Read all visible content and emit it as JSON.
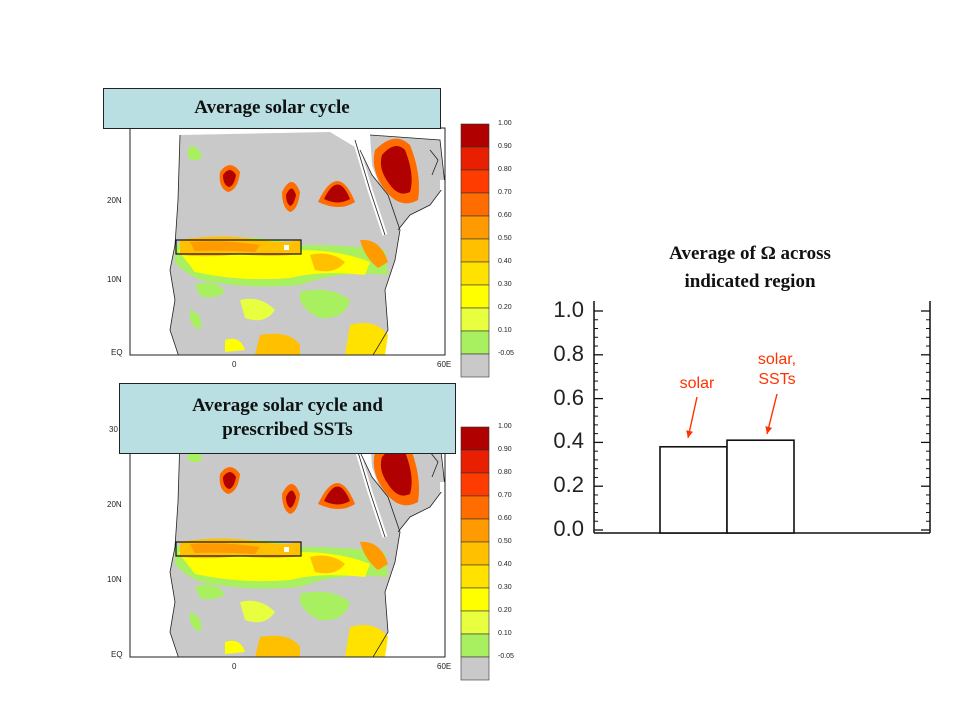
{
  "colors": {
    "scale": [
      "#c9c9c9",
      "#a8f060",
      "#e8ff40",
      "#ffff00",
      "#ffe200",
      "#ffc000",
      "#ff9a00",
      "#ff6c00",
      "#ff3c00",
      "#e81f00",
      "#b00000"
    ],
    "title_bg": "#b9dfe3",
    "annotation": "#ff3300"
  },
  "panels": [
    {
      "title": "Average solar cycle",
      "y_ticks": [
        "20N",
        "10N",
        "EQ"
      ],
      "x_ticks": [
        "0",
        "60E"
      ],
      "colorbar": [
        "1.00",
        "0.90",
        "0.80",
        "0.70",
        "0.60",
        "0.50",
        "0.40",
        "0.30",
        "0.20",
        "0.10",
        "-0.05"
      ]
    },
    {
      "title_lines": [
        "Average solar cycle and",
        "prescribed SSTs"
      ],
      "y_ticks": [
        "30",
        "20N",
        "10N",
        "EQ"
      ],
      "x_ticks": [
        "0",
        "60E"
      ],
      "colorbar": [
        "1.00",
        "0.90",
        "0.80",
        "0.70",
        "0.60",
        "0.50",
        "0.40",
        "0.30",
        "0.20",
        "0.10",
        "-0.05"
      ]
    }
  ],
  "chart_data": {
    "type": "bar",
    "title": "Average of Ω across indicated region",
    "title_lines": [
      "Average of Ω across",
      "indicated region"
    ],
    "categories": [
      "solar",
      "solar, SSTs"
    ],
    "annotation_lines": [
      [
        "solar"
      ],
      [
        "solar,",
        "SSTs"
      ]
    ],
    "values": [
      0.38,
      0.41
    ],
    "ylim": [
      0.0,
      1.0
    ],
    "yticks": [
      "1.0",
      "0.8",
      "0.6",
      "0.4",
      "0.2",
      "0.0"
    ],
    "xlabel": "",
    "ylabel": ""
  }
}
